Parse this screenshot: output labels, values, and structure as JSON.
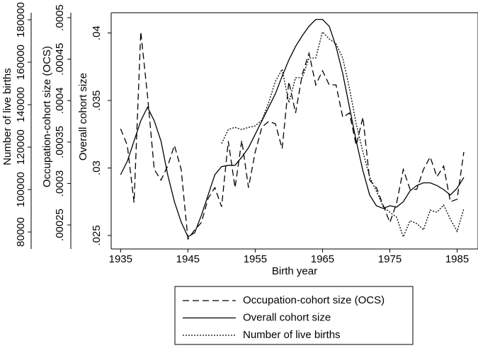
{
  "chart_data": {
    "type": "line",
    "xlabel": "Birth year",
    "ylabel": "Overall cohort size",
    "y2label": "Occupation-cohort size (OCS)",
    "y3label": "Number of live births",
    "x": [
      1935,
      1936,
      1937,
      1938,
      1939,
      1940,
      1941,
      1942,
      1943,
      1944,
      1945,
      1946,
      1947,
      1948,
      1949,
      1950,
      1951,
      1952,
      1953,
      1954,
      1955,
      1956,
      1957,
      1958,
      1959,
      1960,
      1961,
      1962,
      1963,
      1964,
      1965,
      1966,
      1967,
      1968,
      1969,
      1970,
      1971,
      1972,
      1973,
      1974,
      1975,
      1976,
      1977,
      1978,
      1979,
      1980,
      1981,
      1982,
      1983,
      1984,
      1985,
      1986
    ],
    "xlim": [
      1933.6,
      1988.1
    ],
    "xticks": [
      1935,
      1945,
      1955,
      1965,
      1975,
      1985
    ],
    "ylim": [
      0.024,
      0.0415
    ],
    "yticks": [
      {
        "value": 0.025,
        "label": ".025"
      },
      {
        "value": 0.03,
        "label": ".03"
      },
      {
        "value": 0.035,
        "label": ".035"
      },
      {
        "value": 0.04,
        "label": ".04"
      }
    ],
    "y2lim": [
      0.000221,
      0.000506
    ],
    "y2ticks": [
      {
        "value": 0.00025,
        "label": ".00025"
      },
      {
        "value": 0.0003,
        "label": ".0003"
      },
      {
        "value": 0.00035,
        "label": ".00035"
      },
      {
        "value": 0.0004,
        "label": ".0004"
      },
      {
        "value": 0.00045,
        "label": ".00045"
      },
      {
        "value": 0.0005,
        "label": ".0005"
      }
    ],
    "y3lim": [
      72000,
      183333
    ],
    "y3ticks": [
      80000,
      100000,
      120000,
      140000,
      160000,
      180000
    ],
    "series": [
      {
        "name": "Occupation-cohort size (OCS)",
        "color": "#000000",
        "dash": "dashed",
        "axis": "y2",
        "values": [
          0.000366,
          0.000346,
          0.000277,
          0.000483,
          0.000406,
          0.000317,
          0.000304,
          0.000321,
          0.000346,
          0.000317,
          0.000233,
          0.000244,
          0.000253,
          0.000282,
          0.000295,
          0.000272,
          0.000351,
          0.000295,
          0.000352,
          0.000295,
          0.000338,
          0.000368,
          0.000375,
          0.000372,
          0.000342,
          0.000423,
          0.000385,
          0.000432,
          0.000457,
          0.000419,
          0.000436,
          0.000419,
          0.000419,
          0.00038,
          0.000385,
          0.000346,
          0.00038,
          0.000304,
          0.000295,
          0.000274,
          0.000253,
          0.000276,
          0.000317,
          0.000293,
          0.000293,
          0.000317,
          0.000332,
          0.000308,
          0.000321,
          0.000278,
          0.000281,
          0.000338
        ]
      },
      {
        "name": "Overall cohort size",
        "color": "#000000",
        "dash": "solid",
        "axis": "y",
        "values": [
          0.0295,
          0.0305,
          0.032,
          0.0335,
          0.0345,
          0.0335,
          0.032,
          0.0295,
          0.0275,
          0.026,
          0.0249,
          0.0252,
          0.0265,
          0.028,
          0.0295,
          0.0301,
          0.0302,
          0.0302,
          0.0308,
          0.0315,
          0.0325,
          0.0335,
          0.0345,
          0.0355,
          0.0368,
          0.038,
          0.039,
          0.0398,
          0.0405,
          0.041,
          0.041,
          0.0405,
          0.039,
          0.037,
          0.0345,
          0.032,
          0.0298,
          0.028,
          0.0272,
          0.027,
          0.0272,
          0.0271,
          0.0275,
          0.0283,
          0.0287,
          0.0289,
          0.0289,
          0.0287,
          0.0284,
          0.028,
          0.0285,
          0.0293
        ]
      },
      {
        "name": "Number of live births",
        "color": "#000000",
        "dash": "dotted",
        "axis": "y3",
        "values": [
          null,
          null,
          null,
          null,
          null,
          null,
          null,
          null,
          null,
          null,
          null,
          null,
          null,
          null,
          null,
          121700,
          128300,
          129300,
          128300,
          129300,
          130000,
          132700,
          141000,
          151000,
          156700,
          141000,
          152700,
          152700,
          162000,
          162000,
          174300,
          171000,
          168700,
          162000,
          147700,
          131000,
          117700,
          106000,
          99300,
          92000,
          89300,
          87000,
          77700,
          85300,
          84000,
          81000,
          90300,
          89300,
          92700,
          86000,
          80300,
          91000
        ]
      }
    ]
  }
}
